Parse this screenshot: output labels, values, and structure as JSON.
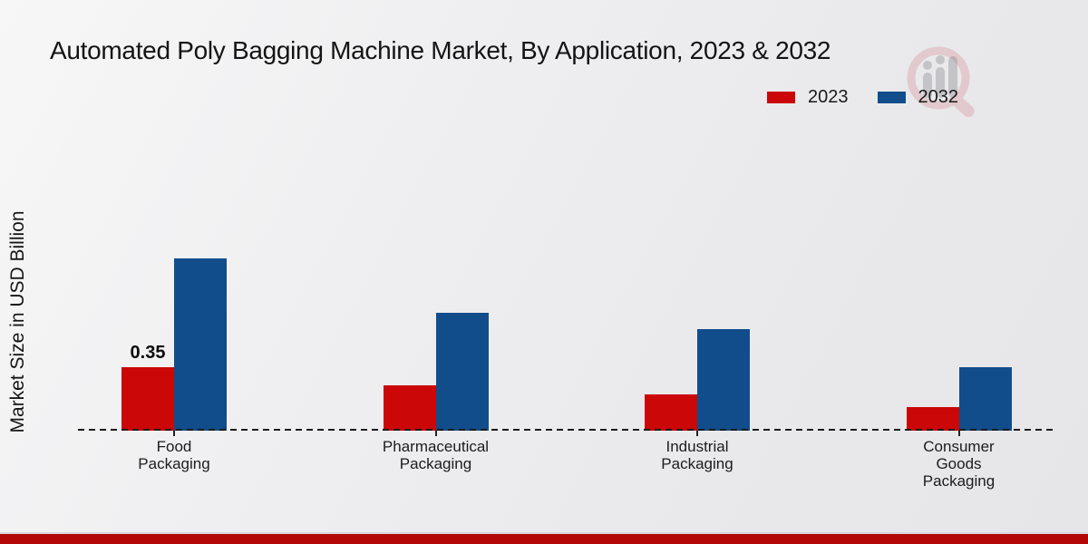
{
  "page": {
    "title": "Automated Poly Bagging Machine Market, By Application, 2023 & 2032",
    "ylabel": "Market Size in USD Billion",
    "footer_color": "#b30606",
    "watermark_icon": "chart-magnifier-logo"
  },
  "legend": {
    "items": [
      {
        "label": "2023",
        "color": "#cb0707"
      },
      {
        "label": "2032",
        "color": "#114d8a"
      }
    ]
  },
  "chart_data": {
    "type": "bar",
    "title": "Automated Poly Bagging Machine Market, By Application, 2023 & 2032",
    "xlabel": "",
    "ylabel": "Market Size in USD Billion",
    "categories": [
      "Food\nPackaging",
      "Pharmaceutical\nPackaging",
      "Industrial\nPackaging",
      "Consumer\nGoods\nPackaging"
    ],
    "series": [
      {
        "name": "2023",
        "color": "#cb0707",
        "values": [
          0.35,
          0.25,
          0.2,
          0.13
        ]
      },
      {
        "name": "2032",
        "color": "#114d8a",
        "values": [
          0.95,
          0.65,
          0.56,
          0.35
        ]
      }
    ],
    "annotations": [
      {
        "series": "2023",
        "category_index": 0,
        "text": "0.35"
      }
    ],
    "ylim": [
      0,
      1.2
    ],
    "grid": false,
    "y_axis_ticks_visible": false,
    "legend_position": "top-right",
    "baseline_style": "dashed"
  }
}
